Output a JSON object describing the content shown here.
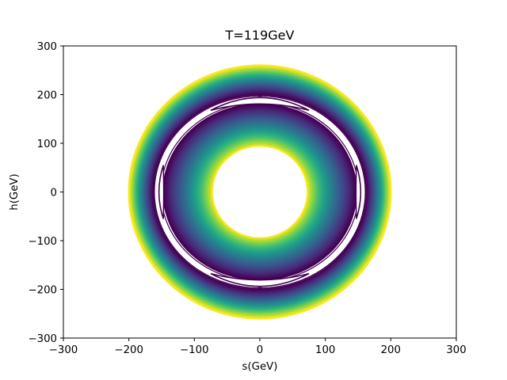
{
  "chart_data": {
    "type": "contour",
    "title": "T=119GeV",
    "xlabel": "s(GeV)",
    "ylabel": "h(GeV)",
    "xlim": [
      -300,
      300
    ],
    "ylim": [
      -300,
      300
    ],
    "x_ticks": [
      "−300",
      "−200",
      "−100",
      "0",
      "100",
      "200",
      "300"
    ],
    "y_ticks": [
      "300",
      "200",
      "100",
      "0",
      "−100",
      "−200",
      "−300"
    ],
    "colormap": "viridis",
    "annulus": {
      "inner_s": 73,
      "inner_h": 95,
      "outer_s": 200,
      "outer_h": 260,
      "valley_s": 157,
      "valley_h": 192
    },
    "minima": [
      {
        "s": 0,
        "h": 197
      },
      {
        "s": 0,
        "h": -197
      },
      {
        "s": -151,
        "h": 0
      },
      {
        "s": 151,
        "h": 0
      }
    ],
    "grid": false
  }
}
